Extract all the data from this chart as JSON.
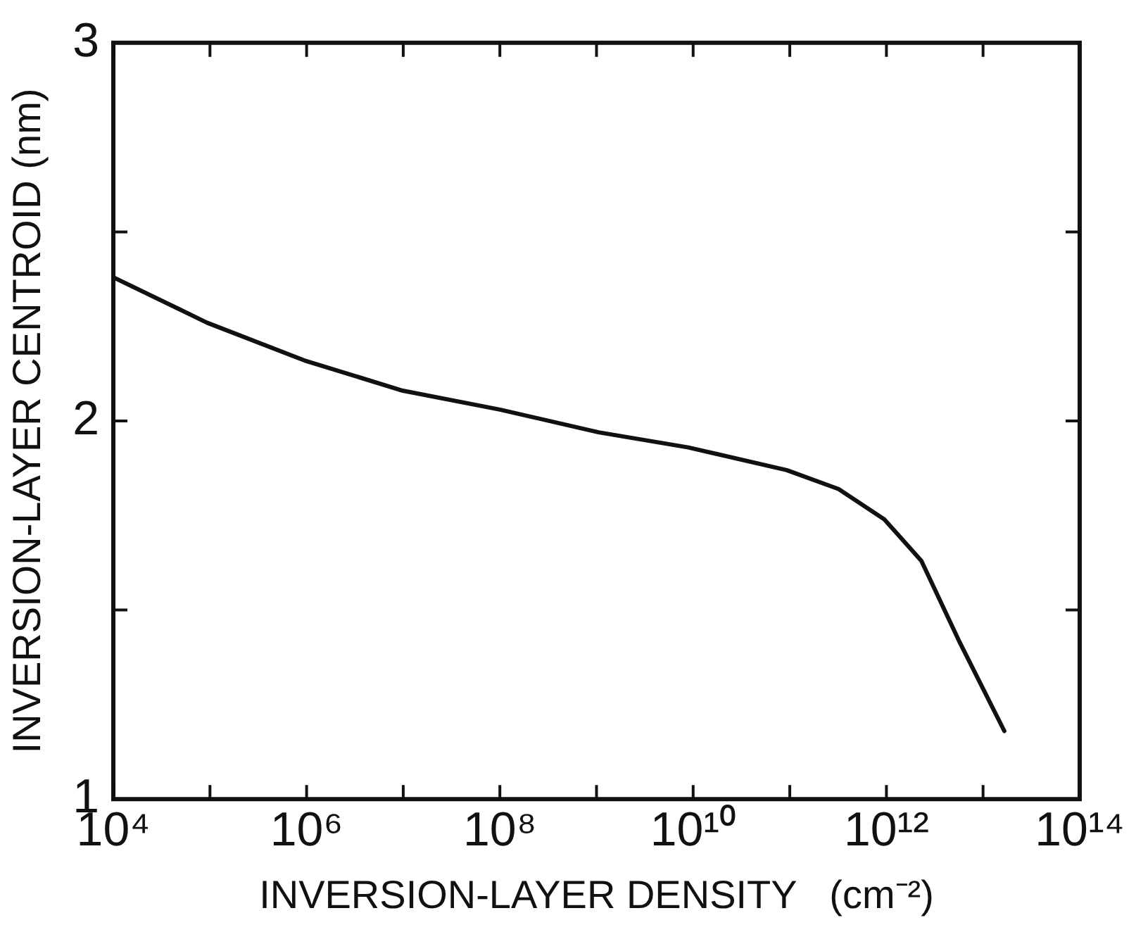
{
  "chart_data": {
    "type": "line",
    "xlabel": "INVERSION-LAYER DENSITY   (cm⁻²)",
    "ylabel": "INVERSION-LAYER CENTROID (nm)",
    "log": "x",
    "grid": false,
    "legend": false,
    "marker": "none",
    "line_style": "solid",
    "xlim": [
      10000.0,
      100000000000000.0
    ],
    "ylim": [
      1,
      3
    ],
    "xticks": [
      {
        "value": 10000.0,
        "label": "10⁴"
      },
      {
        "value": 100000.0,
        "label": null
      },
      {
        "value": 1000000.0,
        "label": "10⁶"
      },
      {
        "value": 10000000.0,
        "label": null
      },
      {
        "value": 100000000.0,
        "label": "10⁸"
      },
      {
        "value": 1000000000.0,
        "label": null
      },
      {
        "value": 10000000000.0,
        "label": "10¹⁰"
      },
      {
        "value": 100000000000.0,
        "label": null
      },
      {
        "value": 1000000000000.0,
        "label": "10¹²"
      },
      {
        "value": 10000000000000.0,
        "label": null
      },
      {
        "value": 100000000000000.0,
        "label": "10¹⁴"
      }
    ],
    "yticks": [
      1,
      {
        "value": 1.5,
        "label": null
      },
      2,
      {
        "value": 2.5,
        "label": null
      },
      3
    ],
    "series": [
      {
        "color": "#111111",
        "x": [
          10000.0,
          93000.0,
          950000.0,
          9900000.0,
          100000000.0,
          1050000000.0,
          8900000000.0,
          93000000000.0,
          320000000000.0,
          950000000000.0,
          2300000000000.0,
          5600000000000.0,
          16600000000000.0
        ],
        "values": [
          2.38,
          2.26,
          2.16,
          2.08,
          2.03,
          1.97,
          1.93,
          1.87,
          1.82,
          1.74,
          1.63,
          1.42,
          1.18
        ]
      }
    ]
  }
}
